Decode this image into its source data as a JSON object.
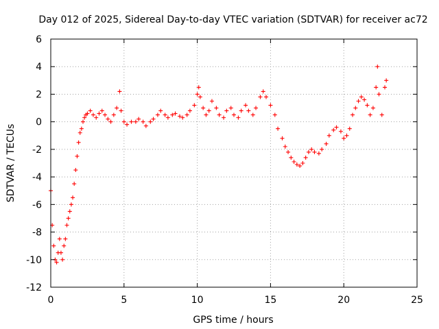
{
  "chart_data": {
    "type": "scatter",
    "title": "Day 012 of 2025, Sidereal Day-to-day VTEC variation (SDTVAR) for receiver ac72",
    "xlabel": "GPS time / hours",
    "ylabel": "SDTVAR / TECUs",
    "xlim": [
      0,
      25
    ],
    "ylim": [
      -12,
      6
    ],
    "xticks": [
      0,
      5,
      10,
      15,
      20,
      25
    ],
    "yticks": [
      -12,
      -10,
      -8,
      -6,
      -4,
      -2,
      0,
      2,
      4,
      6
    ],
    "xtick_labels": [
      "0",
      "5",
      "10",
      "15",
      "20",
      "25"
    ],
    "ytick_labels": [
      "-12",
      "-10",
      "-8",
      "-6",
      "-4",
      "-2",
      "0",
      "2",
      "4",
      "6"
    ],
    "grid": true,
    "marker": "+",
    "color": "#ff0000",
    "series": [
      {
        "name": "SDTVAR",
        "x": [
          0.0,
          0.1,
          0.2,
          0.3,
          0.4,
          0.5,
          0.6,
          0.7,
          0.8,
          0.9,
          1.0,
          1.1,
          1.2,
          1.3,
          1.4,
          1.5,
          1.6,
          1.7,
          1.8,
          1.9,
          2.0,
          2.1,
          2.2,
          2.3,
          2.4,
          2.5,
          2.7,
          2.9,
          3.1,
          3.3,
          3.5,
          3.7,
          3.9,
          4.1,
          4.3,
          4.5,
          4.7,
          4.8,
          5.0,
          5.2,
          5.5,
          5.8,
          6.0,
          6.3,
          6.5,
          6.8,
          7.0,
          7.3,
          7.5,
          7.8,
          8.0,
          8.3,
          8.5,
          8.8,
          9.0,
          9.3,
          9.5,
          9.8,
          10.0,
          10.1,
          10.2,
          10.4,
          10.6,
          10.8,
          11.0,
          11.3,
          11.5,
          11.8,
          12.0,
          12.3,
          12.5,
          12.8,
          13.0,
          13.3,
          13.5,
          13.8,
          14.0,
          14.3,
          14.5,
          14.7,
          15.0,
          15.3,
          15.5,
          15.8,
          16.0,
          16.2,
          16.4,
          16.6,
          16.8,
          17.0,
          17.2,
          17.4,
          17.6,
          17.8,
          18.0,
          18.3,
          18.5,
          18.8,
          19.0,
          19.3,
          19.5,
          19.8,
          20.0,
          20.2,
          20.4,
          20.6,
          20.8,
          21.0,
          21.2,
          21.4,
          21.6,
          21.8,
          22.0,
          22.2,
          22.3,
          22.4,
          22.6,
          22.8,
          22.9
        ],
        "y": [
          -5.0,
          -7.5,
          -9.0,
          -10.0,
          -10.2,
          -9.5,
          -8.5,
          -9.5,
          -10.0,
          -9.0,
          -8.5,
          -7.5,
          -7.0,
          -6.5,
          -6.0,
          -5.5,
          -4.5,
          -3.5,
          -2.5,
          -1.5,
          -0.8,
          -0.5,
          0.0,
          0.3,
          0.5,
          0.6,
          0.8,
          0.5,
          0.3,
          0.6,
          0.8,
          0.5,
          0.2,
          0.0,
          0.5,
          1.0,
          2.2,
          0.8,
          0.0,
          -0.2,
          0.0,
          0.0,
          0.2,
          0.0,
          -0.3,
          0.0,
          0.2,
          0.5,
          0.8,
          0.5,
          0.3,
          0.5,
          0.6,
          0.4,
          0.3,
          0.5,
          0.8,
          1.2,
          2.0,
          2.5,
          1.8,
          1.0,
          0.5,
          0.8,
          1.5,
          1.0,
          0.5,
          0.3,
          0.8,
          1.0,
          0.5,
          0.3,
          0.8,
          1.2,
          0.8,
          0.5,
          1.0,
          1.8,
          2.2,
          1.8,
          1.2,
          0.5,
          -0.5,
          -1.2,
          -1.8,
          -2.2,
          -2.6,
          -2.9,
          -3.1,
          -3.2,
          -3.0,
          -2.6,
          -2.2,
          -2.0,
          -2.2,
          -2.3,
          -2.0,
          -1.6,
          -1.0,
          -0.6,
          -0.4,
          -0.7,
          -1.2,
          -1.0,
          -0.5,
          0.5,
          1.0,
          1.5,
          1.8,
          1.6,
          1.2,
          0.5,
          1.0,
          2.5,
          4.0,
          2.0,
          0.5,
          2.5,
          3.0
        ]
      }
    ]
  }
}
